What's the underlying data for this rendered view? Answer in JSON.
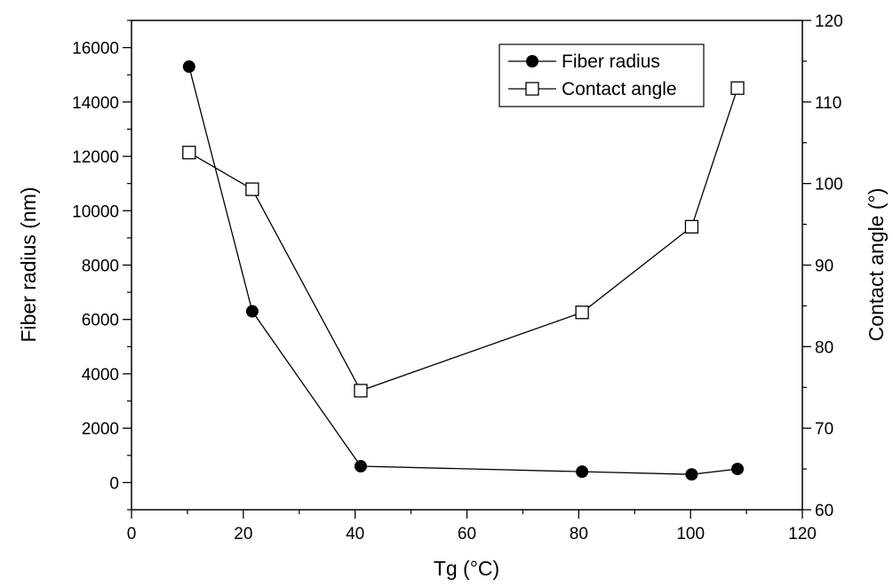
{
  "chart_data": {
    "type": "line",
    "xlabel": "Tg (°C)",
    "ylabel": "Fiber radius (nm)",
    "y2label": "Contact angle (°)",
    "xlim": [
      0,
      120
    ],
    "ylim": [
      -1000,
      17000
    ],
    "y2lim": [
      60,
      120
    ],
    "x_ticks": [
      0,
      20,
      40,
      60,
      80,
      100,
      120
    ],
    "y_ticks": [
      0,
      2000,
      4000,
      6000,
      8000,
      10000,
      12000,
      14000,
      16000
    ],
    "y2_ticks": [
      60,
      70,
      80,
      90,
      100,
      110,
      120
    ],
    "grid": false,
    "legend_position": "top-right",
    "series": [
      {
        "name": "Fiber radius",
        "axis": "left",
        "marker": "filled-circle",
        "x": [
          10.3,
          21.6,
          41.0,
          80.6,
          100.2,
          108.4
        ],
        "y": [
          15300,
          6300,
          600,
          400,
          300,
          500
        ]
      },
      {
        "name": "Contact angle",
        "axis": "right",
        "marker": "open-square",
        "x": [
          10.3,
          21.6,
          41.0,
          80.6,
          100.2,
          108.4
        ],
        "y": [
          103.8,
          99.3,
          74.6,
          84.2,
          94.7,
          111.7
        ]
      }
    ]
  }
}
